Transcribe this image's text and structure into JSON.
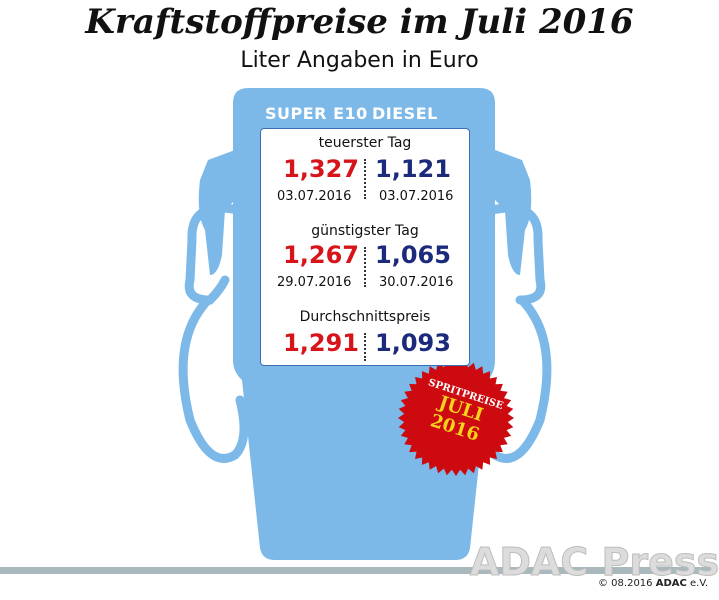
{
  "title": "Kraftstoffpreise im Juli 2016",
  "subtitle": "Liter Angaben in Euro",
  "columns": [
    "SUPER E10",
    "DIESEL"
  ],
  "rows": [
    {
      "label": "teuerster Tag",
      "super": {
        "price": "1,327",
        "date": "03.07.2016"
      },
      "diesel": {
        "price": "1,121",
        "date": "03.07.2016"
      }
    },
    {
      "label": "günstigster Tag",
      "super": {
        "price": "1,267",
        "date": "29.07.2016"
      },
      "diesel": {
        "price": "1,065",
        "date": "30.07.2016"
      }
    },
    {
      "label": "Durchschnittspreis",
      "super": {
        "price": "1,291"
      },
      "diesel": {
        "price": "1,093"
      }
    }
  ],
  "badge": {
    "line1": "SPRITPREISE",
    "line2": "JULI",
    "line3": "2016"
  },
  "watermark": "ADAC Presse",
  "copyright": {
    "prefix": "© 08.2016",
    "brand": "ADAC",
    "suffix": "e.V."
  },
  "colors": {
    "pump": "#7db9e8",
    "super": "#d7141a",
    "diesel": "#1b2a7a",
    "badge": "#cc0a10",
    "badge_text": "#f6d21c"
  }
}
